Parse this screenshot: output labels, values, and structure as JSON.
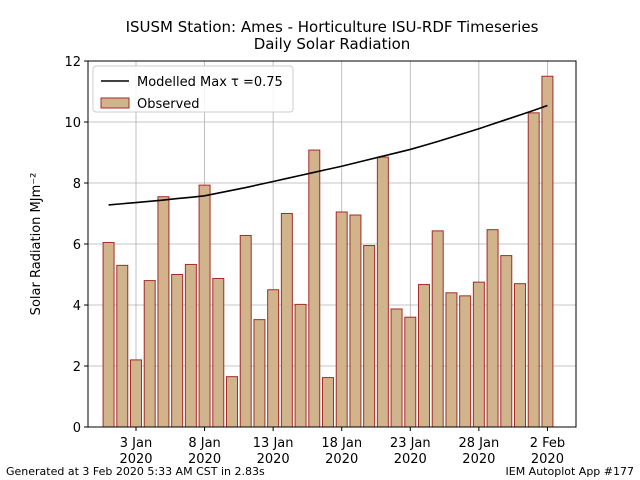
{
  "chart_data": {
    "type": "bar",
    "title": "ISUSM Station: Ames - Horticulture ISU-RDF Timeseries",
    "subtitle": "Daily Solar Radiation",
    "ylabel": "Solar Radiation MJm⁻²",
    "footer_left": "Generated at 3 Feb 2020 5:33 AM CST in 2.83s",
    "footer_right": "IEM Autoplot App #177",
    "x": [
      "2020-01-01",
      "2020-01-02",
      "2020-01-03",
      "2020-01-04",
      "2020-01-05",
      "2020-01-06",
      "2020-01-07",
      "2020-01-08",
      "2020-01-09",
      "2020-01-10",
      "2020-01-11",
      "2020-01-12",
      "2020-01-13",
      "2020-01-14",
      "2020-01-15",
      "2020-01-16",
      "2020-01-17",
      "2020-01-18",
      "2020-01-19",
      "2020-01-20",
      "2020-01-21",
      "2020-01-22",
      "2020-01-23",
      "2020-01-24",
      "2020-01-25",
      "2020-01-26",
      "2020-01-27",
      "2020-01-28",
      "2020-01-29",
      "2020-01-30",
      "2020-01-31",
      "2020-02-01",
      "2020-02-02"
    ],
    "series": [
      {
        "name": "Modelled Max τ =0.75",
        "type": "line",
        "color": "#000000",
        "values": [
          7.28,
          7.32,
          7.36,
          7.4,
          7.44,
          7.49,
          7.53,
          7.58,
          7.67,
          7.76,
          7.85,
          7.95,
          8.05,
          8.15,
          8.25,
          8.35,
          8.45,
          8.55,
          8.66,
          8.77,
          8.88,
          8.99,
          9.1,
          9.23,
          9.36,
          9.5,
          9.64,
          9.78,
          9.93,
          10.08,
          10.23,
          10.38,
          10.54
        ]
      },
      {
        "name": "Observed",
        "type": "bar",
        "color": "#d2b48c",
        "edgecolor": "#a52a2a",
        "values": [
          6.05,
          5.3,
          2.2,
          4.8,
          7.55,
          5.0,
          5.33,
          7.93,
          4.87,
          1.65,
          6.28,
          3.52,
          4.5,
          7.0,
          4.02,
          9.08,
          1.62,
          7.05,
          6.95,
          5.95,
          8.85,
          3.87,
          3.6,
          4.67,
          6.43,
          4.4,
          4.3,
          4.75,
          6.47,
          5.62,
          4.7,
          10.3,
          11.5
        ]
      }
    ],
    "xlim": [
      "2019-12-30T12:00",
      "2020-02-04T02:00"
    ],
    "xticks": [
      {
        "value": "2020-01-03",
        "label": "3 Jan\n2020"
      },
      {
        "value": "2020-01-08",
        "label": "8 Jan\n2020"
      },
      {
        "value": "2020-01-13",
        "label": "13 Jan\n2020"
      },
      {
        "value": "2020-01-18",
        "label": "18 Jan\n2020"
      },
      {
        "value": "2020-01-23",
        "label": "23 Jan\n2020"
      },
      {
        "value": "2020-01-28",
        "label": "28 Jan\n2020"
      },
      {
        "value": "2020-02-02",
        "label": "2 Feb\n2020"
      }
    ],
    "ylim": [
      0,
      12
    ],
    "yticks": [
      0,
      2,
      4,
      6,
      8,
      10,
      12
    ],
    "grid": true,
    "legend": "upper left"
  }
}
